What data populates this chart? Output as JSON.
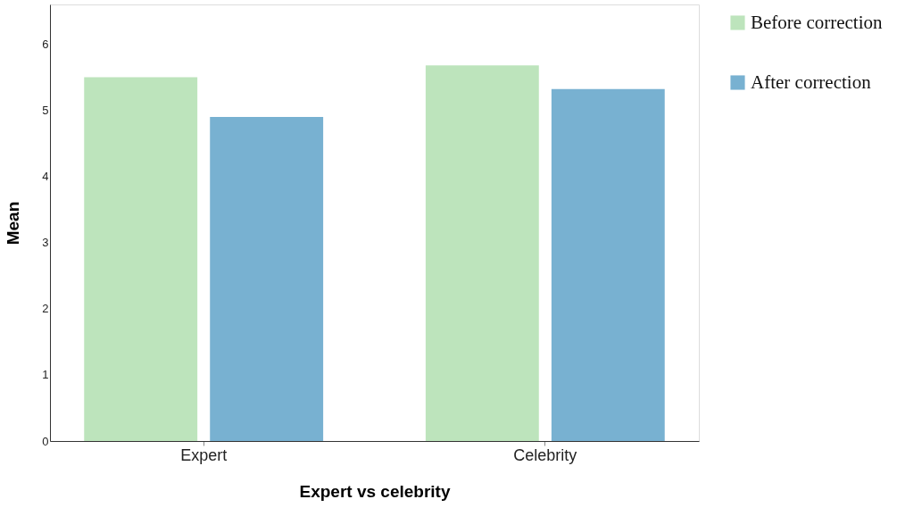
{
  "chart_data": {
    "type": "bar",
    "xlabel": "Expert vs celebrity",
    "ylabel": "Mean",
    "categories": [
      "Expert",
      "Celebrity"
    ],
    "series": [
      {
        "name": "Before correction",
        "color": "#bde4bc",
        "values": [
          5.5,
          5.68
        ]
      },
      {
        "name": "After correction",
        "color": "#78b1d1",
        "values": [
          4.9,
          5.32
        ]
      }
    ],
    "ylim": [
      0,
      6.6
    ],
    "yticks": [
      0,
      1,
      2,
      3,
      4,
      5,
      6
    ],
    "grid": false,
    "legend": "top right"
  }
}
